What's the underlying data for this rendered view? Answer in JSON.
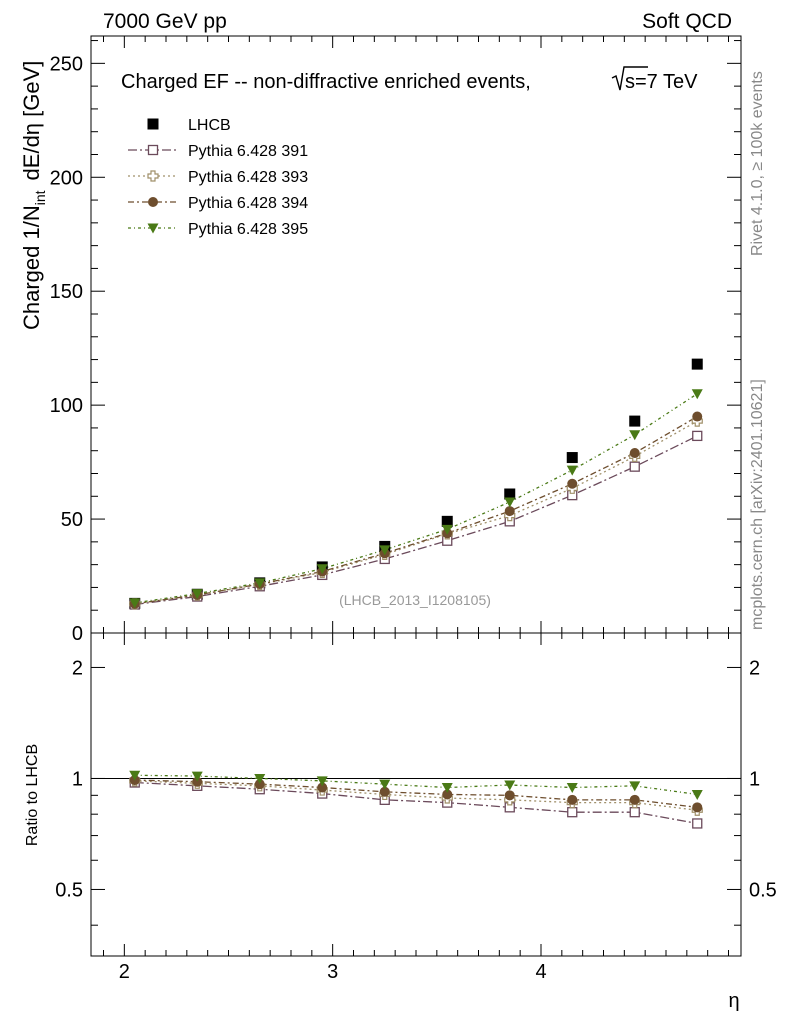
{
  "header": {
    "left": "7000 GeV pp",
    "right": "Soft QCD"
  },
  "side_labels": {
    "rivet": "Rivet 4.1.0, ≥ 100k events",
    "mcplots": "mcplots.cern.ch [arXiv:2401.10621]"
  },
  "chart_data": [
    {
      "type": "scatter",
      "panel": "main",
      "title": "Charged EF -- non-diffractive enriched events, √s=7 TeV",
      "title_main": "Charged EF -- non-diffractive enriched events,",
      "title_energy": "s=7 TeV",
      "ylabel": "Charged 1/N_int dE/dη [GeV]",
      "ylabel_main": "Charged 1/N",
      "ylabel_sub": "int",
      "ylabel_rest": "dE/dη [GeV]",
      "xlabel": "η",
      "xlim": [
        1.84,
        4.96
      ],
      "ylim": [
        0,
        262
      ],
      "yticks": [
        0,
        50,
        100,
        150,
        200,
        250
      ],
      "ytick_labels": [
        "0",
        "50",
        "100",
        "150",
        "200",
        "250"
      ],
      "watermark": "(LHCB_2013_I1208105)",
      "x": [
        2.05,
        2.35,
        2.65,
        2.95,
        3.25,
        3.55,
        3.85,
        4.15,
        4.45,
        4.75
      ],
      "series": [
        {
          "name": "LHCB",
          "marker": "square-filled",
          "color": "#000000",
          "line": false,
          "values": [
            13,
            17,
            22,
            29,
            38,
            49,
            61,
            77,
            93,
            118
          ]
        },
        {
          "name": "Pythia 6.428 391",
          "marker": "square-open",
          "color": "#6b4a5b",
          "line": true,
          "values": [
            12.5,
            16,
            20.5,
            25.5,
            32.5,
            40.5,
            49,
            60.5,
            73,
            86.5
          ]
        },
        {
          "name": "Pythia 6.428 393",
          "marker": "cross-open",
          "color": "#a0906a",
          "line": true,
          "values": [
            12.8,
            16.6,
            21.3,
            26.6,
            34.5,
            43.5,
            51.5,
            63.5,
            77.5,
            93
          ]
        },
        {
          "name": "Pythia 6.428 394",
          "marker": "circle-filled",
          "color": "#6e4e2e",
          "line": true,
          "values": [
            12.8,
            16.7,
            21.5,
            27,
            35,
            43.8,
            53.5,
            65.5,
            79,
            95
          ]
        },
        {
          "name": "Pythia 6.428 395",
          "marker": "triangle-down-filled",
          "color": "#4a7a16",
          "line": true,
          "values": [
            13.2,
            17.3,
            22,
            28.2,
            36.5,
            45.5,
            57.5,
            71.5,
            87,
            105
          ]
        }
      ]
    },
    {
      "type": "scatter",
      "panel": "ratio",
      "ylabel": "Ratio to LHCB",
      "xlabel": "η",
      "xlim": [
        1.84,
        4.96
      ],
      "ylim": [
        0.33,
        2.48
      ],
      "yticks": [
        0.5,
        1,
        2
      ],
      "ytick_labels": [
        "0.5",
        "1",
        "2"
      ],
      "xticks": [
        2,
        3,
        4
      ],
      "xtick_labels": [
        "2",
        "3",
        "4"
      ],
      "reference": 1,
      "x": [
        2.05,
        2.35,
        2.65,
        2.95,
        3.25,
        3.55,
        3.85,
        4.15,
        4.45,
        4.75
      ],
      "series": [
        {
          "name": "Pythia 6.428 391",
          "marker": "square-open",
          "color": "#6b4a5b",
          "values": [
            0.975,
            0.955,
            0.935,
            0.91,
            0.875,
            0.86,
            0.835,
            0.81,
            0.81,
            0.755
          ]
        },
        {
          "name": "Pythia 6.428 393",
          "marker": "cross-open",
          "color": "#a0906a",
          "values": [
            0.985,
            0.97,
            0.955,
            0.93,
            0.905,
            0.885,
            0.875,
            0.86,
            0.86,
            0.82
          ]
        },
        {
          "name": "Pythia 6.428 394",
          "marker": "circle-filled",
          "color": "#6e4e2e",
          "values": [
            0.99,
            0.98,
            0.965,
            0.945,
            0.92,
            0.905,
            0.9,
            0.875,
            0.875,
            0.835
          ]
        },
        {
          "name": "Pythia 6.428 395",
          "marker": "triangle-down-filled",
          "color": "#4a7a16",
          "values": [
            1.02,
            1.015,
            1.0,
            0.985,
            0.965,
            0.945,
            0.96,
            0.945,
            0.955,
            0.905
          ]
        }
      ]
    }
  ]
}
